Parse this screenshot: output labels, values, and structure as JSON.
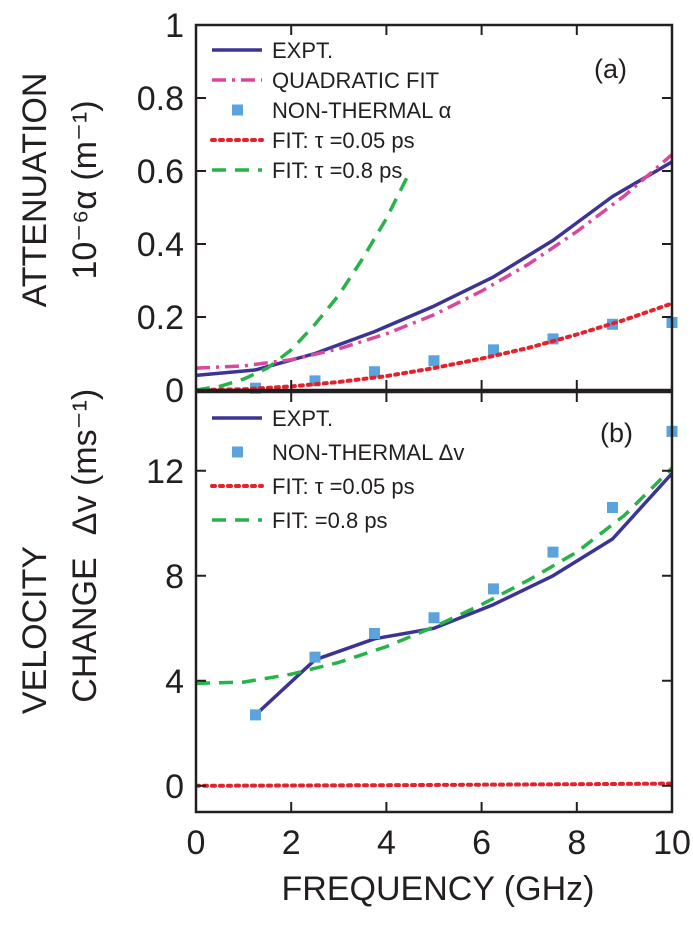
{
  "colors": {
    "expt": "#3b3494",
    "quadratic": "#d9489b",
    "nonthermal": "#5aa3dc",
    "fit_005": "#e2232e",
    "fit_08": "#27b24a",
    "axes": "#231f20"
  },
  "xlabel": "FREQUENCY (GHz)",
  "chart_data": [
    {
      "type": "line",
      "panel_label": "(a)",
      "ylabel_outer": "ATTENUATION",
      "ylabel_inner": "10⁻⁶α  (m⁻¹)",
      "xlim": [
        0,
        10
      ],
      "ylim": [
        0,
        1
      ],
      "xticks": [
        "0",
        "2",
        "4",
        "6",
        "8",
        "10"
      ],
      "yticks": [
        "0",
        "0.2",
        "0.4",
        "0.6",
        "0.8",
        "1"
      ],
      "ytick_values": [
        0,
        0.2,
        0.4,
        0.6,
        0.8,
        1
      ],
      "legend_position": "top",
      "series": [
        {
          "key": "expt",
          "name": "EXPT.",
          "style": "solid",
          "x": [
            0,
            1.25,
            2.5,
            3.75,
            5,
            6.25,
            7.5,
            8.75,
            10
          ],
          "y": [
            0.04,
            0.055,
            0.1,
            0.16,
            0.23,
            0.31,
            0.41,
            0.53,
            0.625
          ]
        },
        {
          "key": "quadratic",
          "name": "QUADRATIC FIT",
          "style": "dashdot",
          "x": [
            0,
            1,
            2,
            3,
            4,
            5,
            6,
            7,
            8,
            9,
            10
          ],
          "y": [
            0.06,
            0.066,
            0.083,
            0.113,
            0.154,
            0.206,
            0.271,
            0.346,
            0.434,
            0.532,
            0.645
          ]
        },
        {
          "key": "nonthermal",
          "name": "NON-THERMAL α",
          "style": "markers",
          "x": [
            1.25,
            2.5,
            3.75,
            5,
            6.25,
            7.5,
            8.75,
            10
          ],
          "y": [
            0.005,
            0.025,
            0.05,
            0.08,
            0.11,
            0.14,
            0.18,
            0.185
          ]
        },
        {
          "key": "fit_005",
          "name": "FIT:  τ =0.05 ps",
          "style": "dotted",
          "x": [
            0,
            1,
            2,
            3,
            4,
            5,
            6,
            7,
            8,
            9,
            10
          ],
          "y": [
            0,
            0.002,
            0.01,
            0.022,
            0.038,
            0.06,
            0.086,
            0.116,
            0.152,
            0.192,
            0.237
          ]
        },
        {
          "key": "fit_08",
          "name": "FIT:  τ =0.8 ps",
          "style": "dashed",
          "x": [
            0,
            0.5,
            1,
            1.5,
            2,
            2.5,
            3,
            3.5,
            4,
            4.5
          ],
          "y": [
            0,
            0.01,
            0.03,
            0.06,
            0.11,
            0.18,
            0.26,
            0.36,
            0.47,
            0.6
          ]
        }
      ]
    },
    {
      "type": "line",
      "panel_label": "(b)",
      "ylabel_outer_1": "VELOCITY",
      "ylabel_outer_2": "CHANGE",
      "ylabel_inner": "Δv (ms⁻¹)",
      "xlim": [
        0,
        10
      ],
      "ylim": [
        -1,
        15
      ],
      "xticks": [
        "0",
        "2",
        "4",
        "6",
        "8",
        "10"
      ],
      "yticks": [
        "0",
        "4",
        "8",
        "12"
      ],
      "ytick_values": [
        0,
        4,
        8,
        12
      ],
      "legend_position": "top",
      "series": [
        {
          "key": "expt",
          "name": "EXPT.",
          "style": "solid",
          "x": [
            1.25,
            2.5,
            3.75,
            5,
            6.25,
            7.5,
            8.75,
            10
          ],
          "y": [
            2.7,
            4.8,
            5.6,
            6.0,
            6.9,
            8.0,
            9.4,
            11.9
          ]
        },
        {
          "key": "nonthermal",
          "name": "NON-THERMAL Δv",
          "style": "markers",
          "x": [
            1.25,
            2.5,
            3.75,
            5,
            6.25,
            7.5,
            8.75,
            10
          ],
          "y": [
            2.7,
            4.9,
            5.8,
            6.4,
            7.5,
            8.9,
            10.6,
            13.5
          ]
        },
        {
          "key": "fit_005",
          "name": "FIT:  τ =0.05 ps",
          "style": "dotted",
          "x": [
            0,
            2,
            4,
            6,
            8,
            10
          ],
          "y": [
            0.0,
            0.01,
            0.02,
            0.04,
            0.06,
            0.08
          ]
        },
        {
          "key": "fit_08",
          "name": "FIT:     =0.8 ps",
          "style": "dashed",
          "x": [
            0,
            1,
            2,
            3,
            4,
            5,
            6,
            7,
            8,
            9,
            10
          ],
          "y": [
            3.9,
            3.95,
            4.25,
            4.7,
            5.3,
            6.05,
            6.9,
            7.85,
            8.9,
            10.3,
            12.1
          ]
        }
      ]
    }
  ]
}
